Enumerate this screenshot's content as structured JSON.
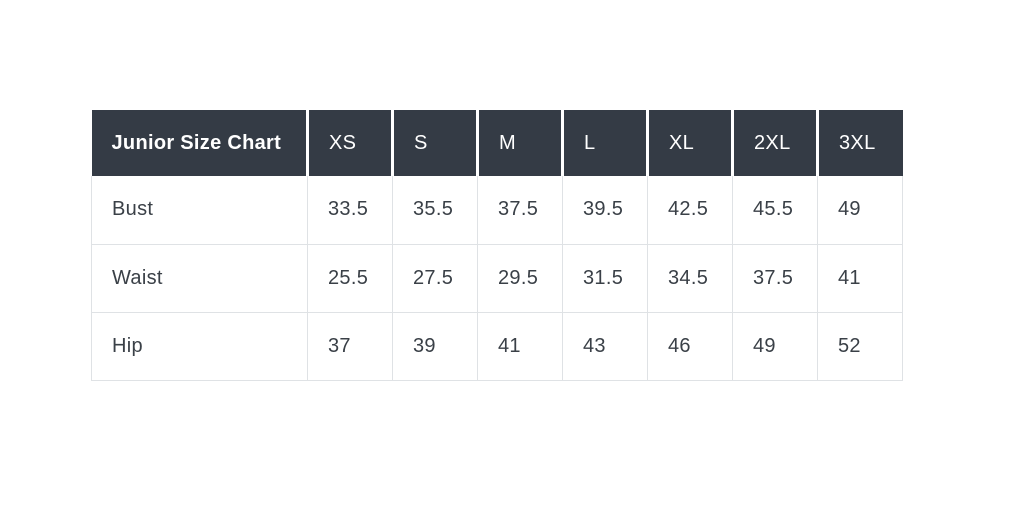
{
  "chart_data": {
    "type": "table",
    "title": "Junior Size Chart",
    "columns": [
      "XS",
      "S",
      "M",
      "L",
      "XL",
      "2XL",
      "3XL"
    ],
    "rows": [
      {
        "label": "Bust",
        "values": [
          33.5,
          35.5,
          37.5,
          39.5,
          42.5,
          45.5,
          49
        ]
      },
      {
        "label": "Waist",
        "values": [
          25.5,
          27.5,
          29.5,
          31.5,
          34.5,
          37.5,
          41
        ]
      },
      {
        "label": "Hip",
        "values": [
          37,
          39,
          41,
          43,
          46,
          49,
          52
        ]
      }
    ],
    "layout": {
      "header_position": "top",
      "grid": "light-gray-body-borders",
      "alignment": "left"
    },
    "colors": {
      "header_bg": "#343b45",
      "header_text": "#ffffff",
      "body_text": "#3a4047",
      "border": "#dfe2e5",
      "page_bg": "#ffffff"
    }
  }
}
